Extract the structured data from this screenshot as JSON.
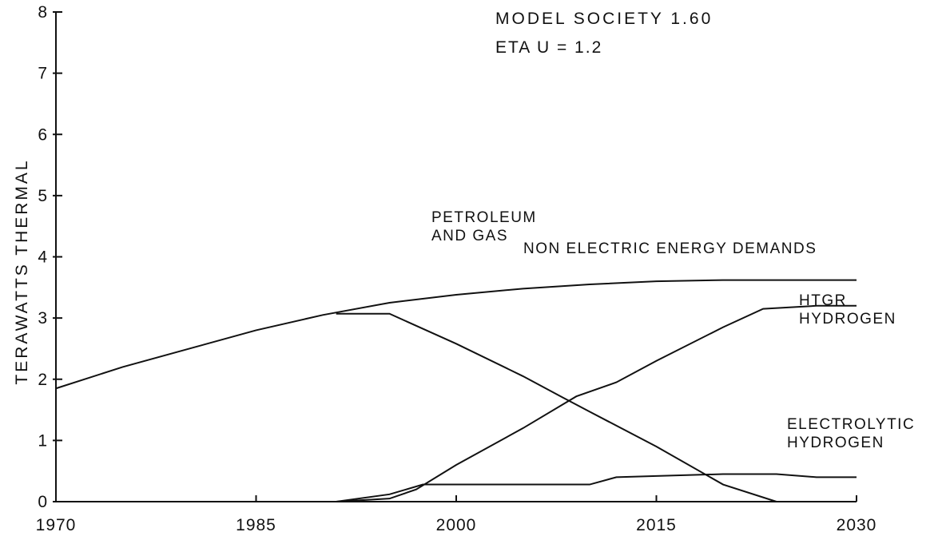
{
  "chart_data": {
    "type": "line",
    "annotations": [
      "MODEL SOCIETY 1.60",
      "ETA U = 1.2"
    ],
    "ylabel": "TERAWATTS THERMAL",
    "xlim": [
      1970,
      2030
    ],
    "xticks": [
      1970,
      1985,
      2000,
      2015,
      2030
    ],
    "ylim": [
      0,
      8
    ],
    "yticks": [
      0,
      1,
      2,
      3,
      4,
      5,
      6,
      7,
      8
    ],
    "series": [
      {
        "name": "NON ELECTRIC ENERGY DEMANDS",
        "color": "#111111",
        "x": [
          1970,
          1975,
          1980,
          1985,
          1990,
          1995,
          2000,
          2005,
          2010,
          2015,
          2020,
          2025,
          2030
        ],
        "values": [
          1.85,
          2.2,
          2.5,
          2.8,
          3.05,
          3.25,
          3.38,
          3.48,
          3.55,
          3.6,
          3.62,
          3.62,
          3.62
        ]
      },
      {
        "name": "PETROLEUM AND GAS",
        "color": "#111111",
        "x": [
          1991,
          1995,
          2000,
          2005,
          2008,
          2010,
          2015,
          2020,
          2024
        ],
        "values": [
          3.07,
          3.07,
          2.58,
          2.05,
          1.7,
          1.47,
          0.9,
          0.28,
          0
        ]
      },
      {
        "name": "HTGR HYDROGEN",
        "color": "#111111",
        "x": [
          1991,
          1995,
          1997,
          2000,
          2005,
          2009,
          2012,
          2015,
          2020,
          2023,
          2027,
          2030
        ],
        "values": [
          0,
          0.05,
          0.2,
          0.6,
          1.2,
          1.72,
          1.95,
          2.3,
          2.85,
          3.15,
          3.2,
          3.2
        ]
      },
      {
        "name": "ELECTROLYTIC HYDROGEN",
        "color": "#111111",
        "x": [
          1991,
          1995,
          1997.5,
          2000,
          2010,
          2012,
          2015,
          2020,
          2024,
          2027,
          2030
        ],
        "values": [
          0,
          0.12,
          0.28,
          0.28,
          0.28,
          0.4,
          0.42,
          0.45,
          0.45,
          0.4,
          0.4
        ]
      }
    ]
  }
}
